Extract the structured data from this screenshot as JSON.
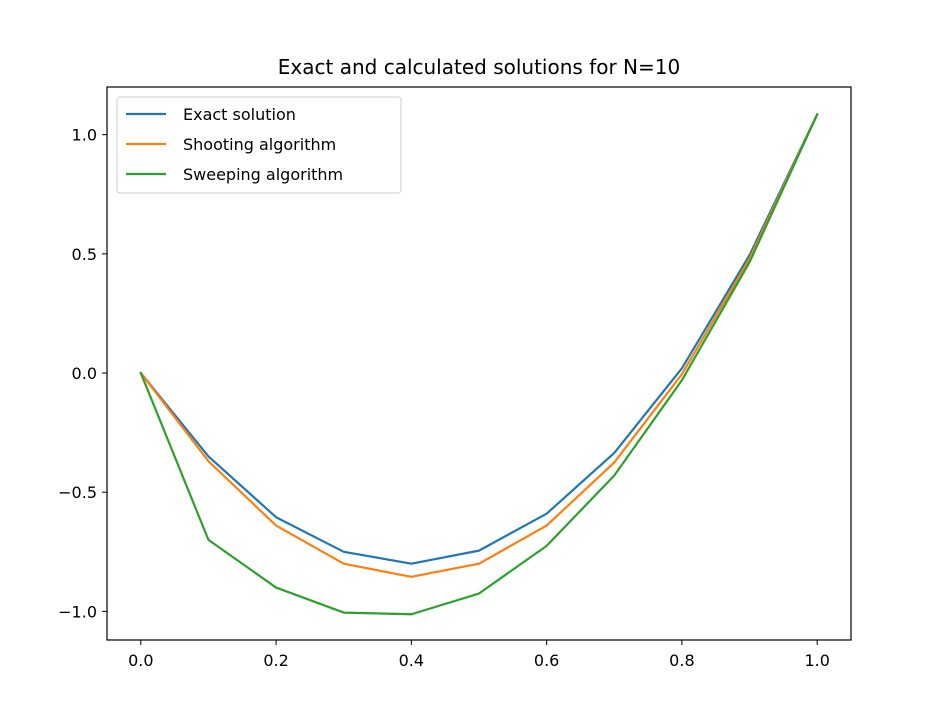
{
  "chart_data": {
    "type": "line",
    "title": "Exact and calculated solutions for N=10",
    "xlabel": "",
    "ylabel": "",
    "xlim": [
      -0.05,
      1.05
    ],
    "ylim": [
      -1.12,
      1.2
    ],
    "xticks": [
      0.0,
      0.2,
      0.4,
      0.6,
      0.8,
      1.0
    ],
    "xtick_labels": [
      "0.0",
      "0.2",
      "0.4",
      "0.6",
      "0.8",
      "1.0"
    ],
    "yticks": [
      -1.0,
      -0.5,
      0.0,
      0.5,
      1.0
    ],
    "ytick_labels": [
      "−1.0",
      "−0.5",
      "0.0",
      "0.5",
      "1.0"
    ],
    "grid": false,
    "legend_position": "top-left",
    "x": [
      0.0,
      0.1,
      0.2,
      0.3,
      0.4,
      0.5,
      0.6,
      0.7,
      0.8,
      0.9,
      1.0
    ],
    "series": [
      {
        "name": "Exact solution",
        "color": "#1f77b4",
        "values": [
          0.0,
          -0.35,
          -0.605,
          -0.75,
          -0.8,
          -0.745,
          -0.59,
          -0.335,
          0.02,
          0.495,
          1.085
        ]
      },
      {
        "name": "Shooting algorithm",
        "color": "#ff7f0e",
        "values": [
          0.0,
          -0.37,
          -0.64,
          -0.8,
          -0.855,
          -0.8,
          -0.64,
          -0.375,
          -0.005,
          0.48,
          1.085
        ]
      },
      {
        "name": "Sweeping algorithm",
        "color": "#2ca02c",
        "values": [
          0.0,
          -0.7,
          -0.9,
          -1.005,
          -1.012,
          -0.925,
          -0.725,
          -0.43,
          -0.03,
          0.465,
          1.085
        ]
      }
    ]
  }
}
